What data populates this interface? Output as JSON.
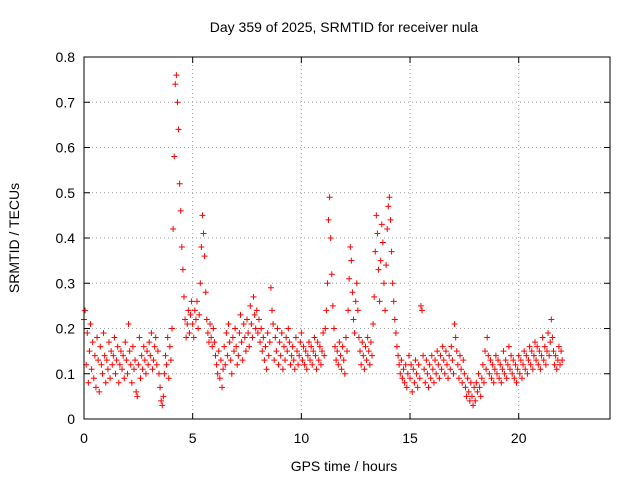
{
  "chart_data": {
    "type": "scatter",
    "title": "Day 359 of 2025, SRMTID for receiver nula",
    "xlabel": "GPS time / hours",
    "ylabel": "SRMTID / TECUs",
    "xlim": [
      0,
      24.2
    ],
    "ylim": [
      0,
      0.8
    ],
    "xticks": [
      0,
      5,
      10,
      15,
      20
    ],
    "yticks": [
      0,
      0.1,
      0.2,
      0.3,
      0.4,
      0.5,
      0.6,
      0.7,
      0.8
    ],
    "xtick_labels": [
      "0",
      "5",
      "10",
      "15",
      "20"
    ],
    "ytick_labels": [
      "0",
      "0.1",
      "0.2",
      "0.3",
      "0.4",
      "0.5",
      "0.6",
      "0.7",
      "0.8"
    ],
    "grid": true,
    "marker": "+",
    "series": [
      {
        "name": "SRMTID",
        "color": "#ff0000",
        "x_start": 0.0,
        "x_step": 0.05,
        "values": [
          0.22,
          0.24,
          0.12,
          0.19,
          0.08,
          0.15,
          0.21,
          0.11,
          0.17,
          0.09,
          0.14,
          0.07,
          0.18,
          0.13,
          0.06,
          0.16,
          0.12,
          0.1,
          0.19,
          0.14,
          0.08,
          0.13,
          0.11,
          0.17,
          0.09,
          0.15,
          0.12,
          0.14,
          0.18,
          0.1,
          0.13,
          0.16,
          0.08,
          0.12,
          0.15,
          0.11,
          0.14,
          0.09,
          0.17,
          0.13,
          0.1,
          0.21,
          0.15,
          0.12,
          0.08,
          0.16,
          0.11,
          0.13,
          0.06,
          0.05,
          0.12,
          0.18,
          0.09,
          0.14,
          0.11,
          0.16,
          0.13,
          0.1,
          0.15,
          0.12,
          0.17,
          0.14,
          0.19,
          0.11,
          0.13,
          0.16,
          0.18,
          0.12,
          0.15,
          0.1,
          0.07,
          0.04,
          0.03,
          0.05,
          0.1,
          0.14,
          0.12,
          0.18,
          0.09,
          0.16,
          0.13,
          0.2,
          0.42,
          0.58,
          0.74,
          0.76,
          0.7,
          0.64,
          0.52,
          0.46,
          0.38,
          0.33,
          0.27,
          0.22,
          0.18,
          0.21,
          0.24,
          0.19,
          0.23,
          0.26,
          0.21,
          0.18,
          0.24,
          0.22,
          0.26,
          0.2,
          0.23,
          0.3,
          0.38,
          0.45,
          0.41,
          0.36,
          0.28,
          0.22,
          0.19,
          0.17,
          0.21,
          0.18,
          0.16,
          0.2,
          0.17,
          0.14,
          0.12,
          0.1,
          0.15,
          0.09,
          0.13,
          0.07,
          0.11,
          0.16,
          0.12,
          0.19,
          0.14,
          0.21,
          0.17,
          0.13,
          0.1,
          0.18,
          0.15,
          0.2,
          0.16,
          0.12,
          0.14,
          0.19,
          0.23,
          0.17,
          0.13,
          0.21,
          0.18,
          0.15,
          0.22,
          0.19,
          0.16,
          0.25,
          0.21,
          0.18,
          0.27,
          0.23,
          0.2,
          0.24,
          0.19,
          0.22,
          0.17,
          0.2,
          0.15,
          0.18,
          0.13,
          0.16,
          0.11,
          0.19,
          0.14,
          0.17,
          0.29,
          0.24,
          0.21,
          0.13,
          0.18,
          0.15,
          0.2,
          0.12,
          0.17,
          0.14,
          0.19,
          0.11,
          0.16,
          0.13,
          0.18,
          0.15,
          0.2,
          0.17,
          0.12,
          0.14,
          0.16,
          0.13,
          0.11,
          0.18,
          0.15,
          0.12,
          0.14,
          0.17,
          0.19,
          0.13,
          0.16,
          0.12,
          0.15,
          0.11,
          0.14,
          0.17,
          0.13,
          0.16,
          0.12,
          0.15,
          0.18,
          0.14,
          0.11,
          0.17,
          0.13,
          0.16,
          0.12,
          0.15,
          0.19,
          0.14,
          0.2,
          0.24,
          0.3,
          0.44,
          0.49,
          0.4,
          0.32,
          0.25,
          0.2,
          0.16,
          0.13,
          0.15,
          0.12,
          0.17,
          0.14,
          0.11,
          0.16,
          0.13,
          0.1,
          0.18,
          0.15,
          0.24,
          0.31,
          0.38,
          0.35,
          0.28,
          0.22,
          0.19,
          0.26,
          0.3,
          0.24,
          0.18,
          0.15,
          0.12,
          0.17,
          0.14,
          0.11,
          0.16,
          0.13,
          0.18,
          0.15,
          0.12,
          0.17,
          0.14,
          0.21,
          0.27,
          0.37,
          0.45,
          0.41,
          0.33,
          0.26,
          0.35,
          0.43,
          0.39,
          0.3,
          0.24,
          0.34,
          0.42,
          0.47,
          0.49,
          0.44,
          0.37,
          0.3,
          0.26,
          0.22,
          0.19,
          0.16,
          0.14,
          0.12,
          0.1,
          0.13,
          0.09,
          0.11,
          0.08,
          0.12,
          0.07,
          0.1,
          0.14,
          0.09,
          0.12,
          0.06,
          0.11,
          0.08,
          0.13,
          0.1,
          0.07,
          0.12,
          0.09,
          0.25,
          0.24,
          0.14,
          0.11,
          0.08,
          0.13,
          0.1,
          0.07,
          0.12,
          0.09,
          0.14,
          0.11,
          0.08,
          0.13,
          0.1,
          0.15,
          0.12,
          0.09,
          0.14,
          0.11,
          0.16,
          0.13,
          0.1,
          0.15,
          0.12,
          0.09,
          0.14,
          0.11,
          0.16,
          0.13,
          0.1,
          0.21,
          0.18,
          0.15,
          0.12,
          0.09,
          0.14,
          0.11,
          0.08,
          0.13,
          0.1,
          0.07,
          0.05,
          0.09,
          0.06,
          0.04,
          0.08,
          0.05,
          0.03,
          0.07,
          0.04,
          0.08,
          0.06,
          0.1,
          0.07,
          0.05,
          0.09,
          0.12,
          0.08,
          0.15,
          0.11,
          0.18,
          0.14,
          0.1,
          0.13,
          0.09,
          0.12,
          0.08,
          0.11,
          0.14,
          0.1,
          0.13,
          0.09,
          0.12,
          0.08,
          0.11,
          0.15,
          0.1,
          0.13,
          0.09,
          0.12,
          0.16,
          0.11,
          0.14,
          0.1,
          0.13,
          0.09,
          0.12,
          0.08,
          0.11,
          0.14,
          0.1,
          0.13,
          0.09,
          0.12,
          0.15,
          0.11,
          0.14,
          0.1,
          0.13,
          0.16,
          0.12,
          0.15,
          0.11,
          0.14,
          0.17,
          0.13,
          0.16,
          0.12,
          0.15,
          0.11,
          0.14,
          0.18,
          0.13,
          0.16,
          0.12,
          0.15,
          0.19,
          0.14,
          0.17,
          0.22,
          0.18,
          0.15,
          0.12,
          0.14,
          0.11,
          0.13,
          0.16,
          0.12,
          0.15,
          0.13
        ]
      }
    ]
  }
}
